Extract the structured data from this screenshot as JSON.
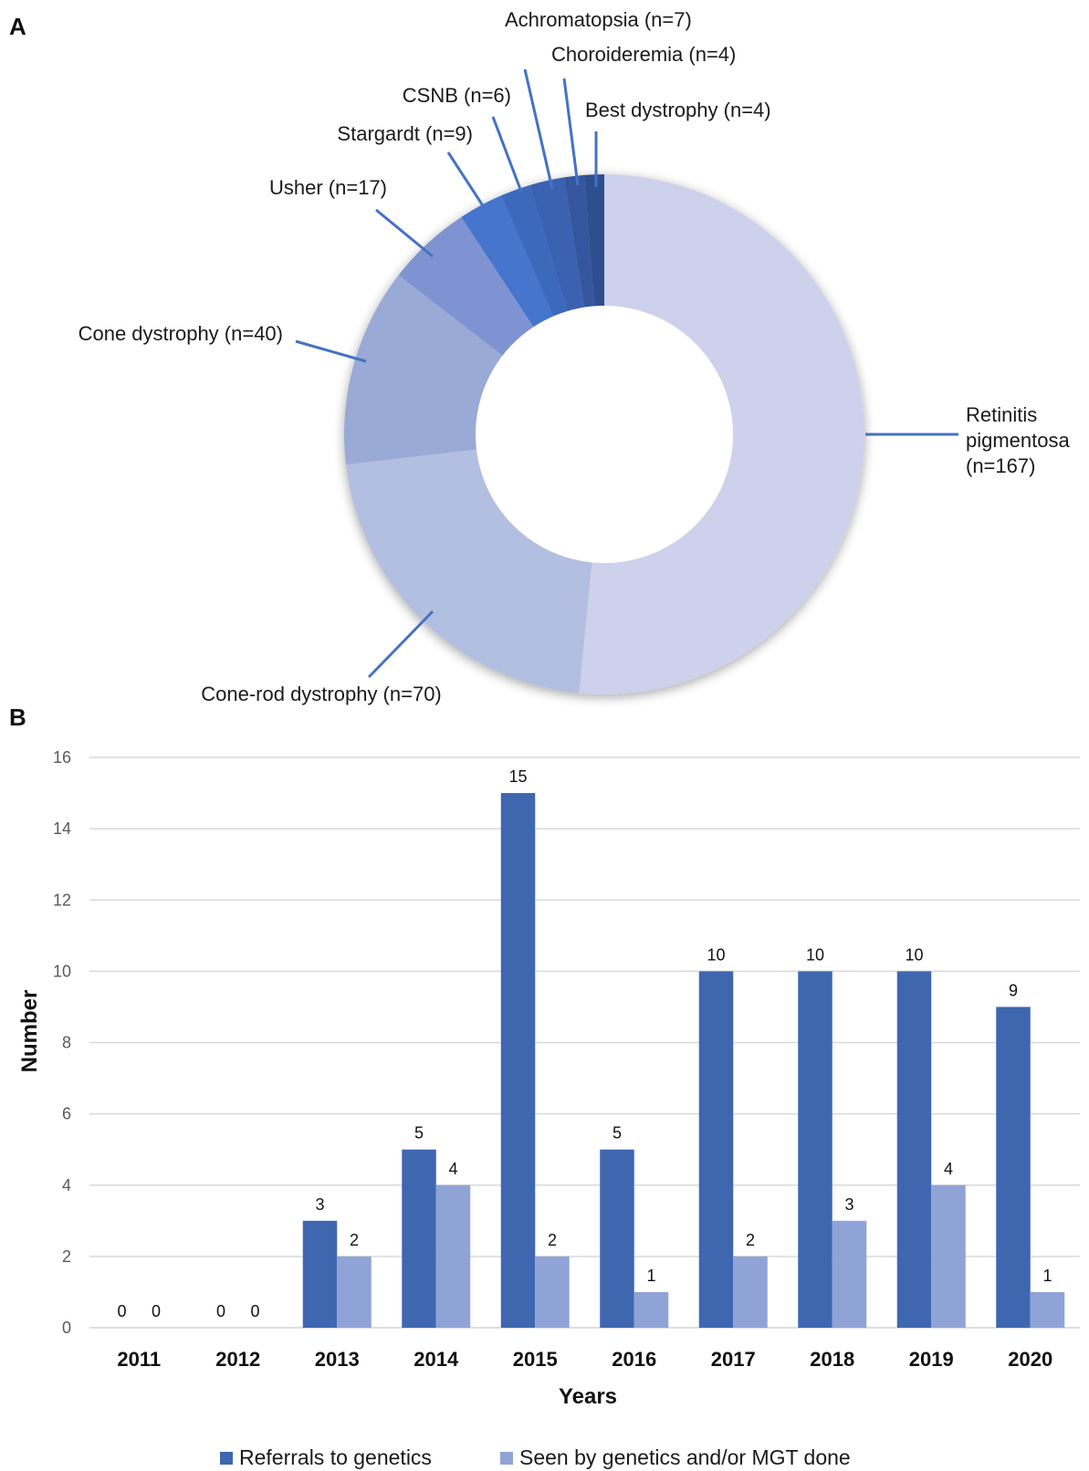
{
  "panels": {
    "a": "A",
    "b": "B"
  },
  "chart_data": [
    {
      "type": "pie",
      "donut": true,
      "slices": [
        {
          "label": "Retinitis pigmentosa (n=167)",
          "label_lines": [
            "Retinitis",
            "pigmentosa",
            "(n=167)"
          ],
          "value": 167,
          "color": "#ced1ec"
        },
        {
          "label": "Cone-rod dystrophy (n=70)",
          "value": 70,
          "color": "#b3bfe0"
        },
        {
          "label": "Cone dystrophy (n=40)",
          "value": 40,
          "color": "#9aaad6"
        },
        {
          "label": "Usher (n=17)",
          "value": 17,
          "color": "#7f92d2"
        },
        {
          "label": "Stargardt (n=9)",
          "value": 9,
          "color": "#4574cc"
        },
        {
          "label": "CSNB (n=6)",
          "value": 6,
          "color": "#3e69bd"
        },
        {
          "label": "Achromatopsia (n=7)",
          "value": 7,
          "color": "#3a62b0"
        },
        {
          "label": "Choroideremia (n=4)",
          "value": 4,
          "color": "#34579e"
        },
        {
          "label": "Best dystrophy (n=4)",
          "value": 4,
          "color": "#2f4f8f"
        }
      ],
      "leader_color": "#4472c4"
    },
    {
      "type": "bar",
      "categories": [
        "2011",
        "2012",
        "2013",
        "2014",
        "2015",
        "2016",
        "2017",
        "2018",
        "2019",
        "2020"
      ],
      "series": [
        {
          "name": "Referrals to genetics",
          "values": [
            0,
            0,
            3,
            5,
            15,
            5,
            10,
            10,
            10,
            9
          ],
          "color": "#3f67b0"
        },
        {
          "name": "Seen by genetics and/or MGT done",
          "values": [
            0,
            0,
            2,
            4,
            2,
            1,
            2,
            3,
            4,
            1
          ],
          "color": "#8fa3d6"
        }
      ],
      "xlabel": "Years",
      "ylabel": "Number",
      "ylim": [
        0,
        16
      ],
      "yticks": [
        0,
        2,
        4,
        6,
        8,
        10,
        12,
        14,
        16
      ],
      "grid": true,
      "legend": "bottom"
    }
  ]
}
